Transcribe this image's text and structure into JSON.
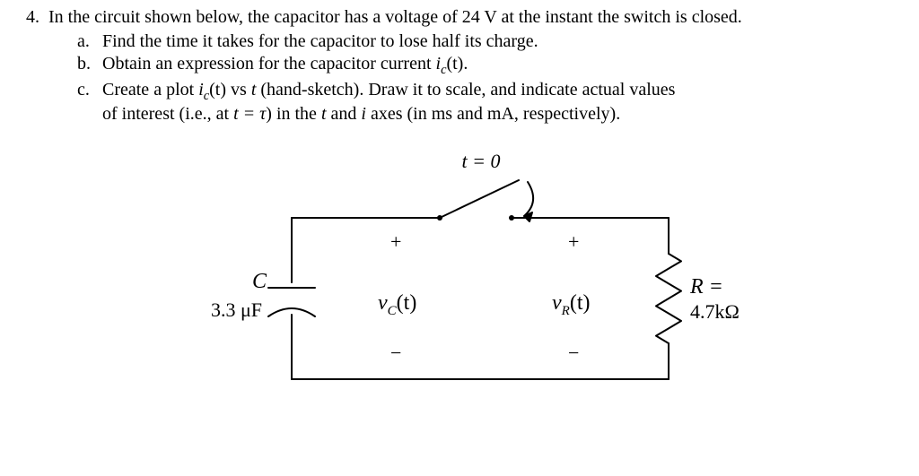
{
  "problem": {
    "number": "4.",
    "stem_a": "In the circuit shown below, the capacitor has a voltage of ",
    "stem_voltage": "24 V",
    "stem_b": " at the instant the switch is closed.",
    "parts": {
      "a": {
        "label": "a.",
        "text": "Find the time it takes for the capacitor to lose half its charge."
      },
      "b": {
        "label": "b.",
        "prefix": "Obtain an expression for the capacitor current ",
        "ic": "i",
        "ic_sub": "c",
        "ic_suffix": "(t).",
        "trail": ""
      },
      "c": {
        "label": "c.",
        "line1_pre": "Create a plot ",
        "ic": "i",
        "ic_sub": "c",
        "ic_arg": "(t)",
        "line1_mid": " vs ",
        "t": "t",
        "line1_post": " (hand-sketch). Draw it to scale, and indicate actual values",
        "line2_pre": "of interest (i.e., at ",
        "eq": "t = τ",
        "line2_mid": ") in the ",
        "ax_t": "t",
        "line2_and": " and ",
        "ax_i": "i",
        "line2_post": " axes (in ms and mA, respectively)."
      }
    }
  },
  "circuit": {
    "switch_label": "t = 0",
    "plus": "+",
    "minus": "−",
    "cap_letter": "C",
    "cap_value": "3.3 μF",
    "vc_pre": "v",
    "vc_sub": "C",
    "vc_arg": "(t)",
    "vr_pre": "v",
    "vr_sub": "R",
    "vr_arg": "(t)",
    "R_label": "R =",
    "R_value": "4.7kΩ",
    "colors": {
      "stroke": "#000000",
      "bg": "#ffffff"
    },
    "line_width": 2
  }
}
